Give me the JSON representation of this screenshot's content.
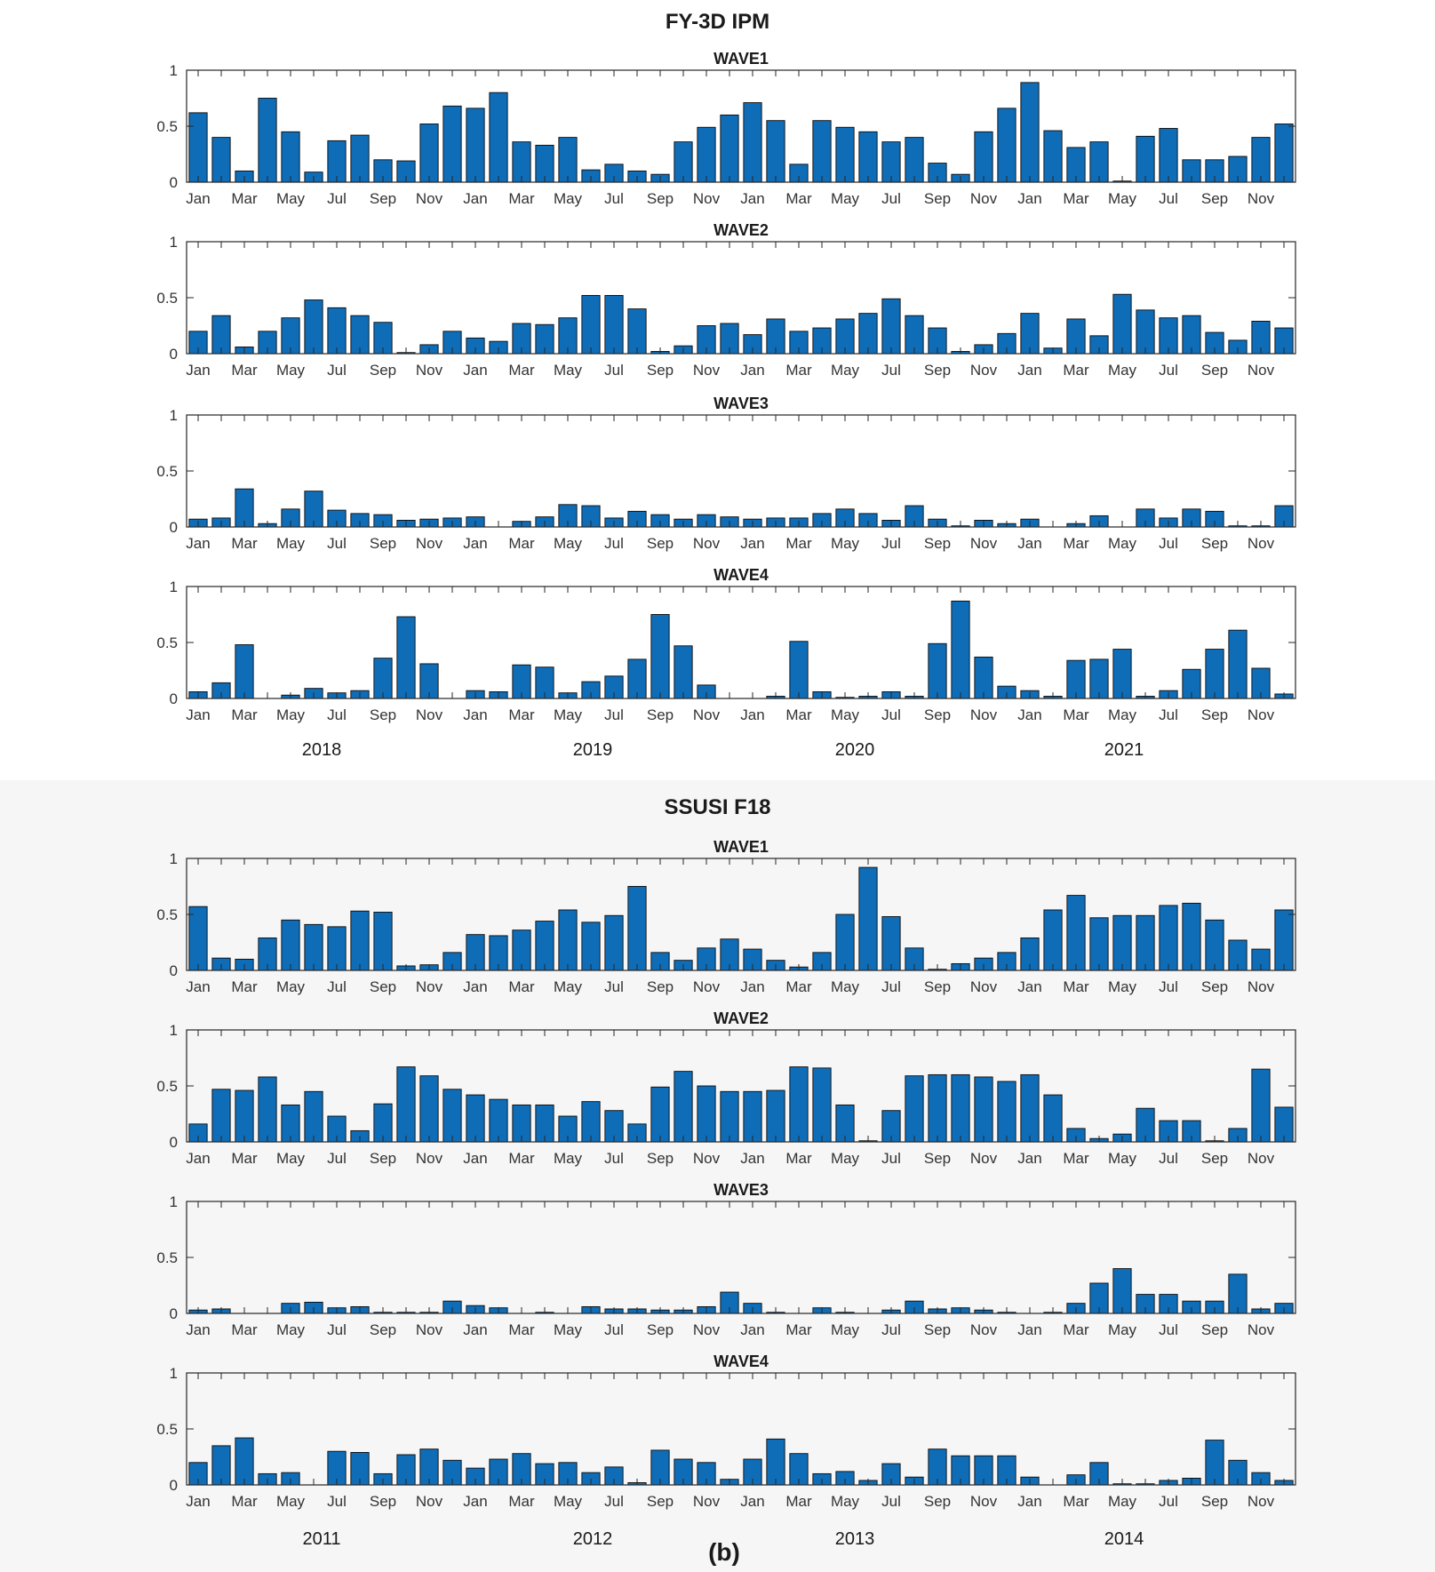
{
  "colors": {
    "bar_fill": "#0f6db8",
    "bar_stroke": "#0a0a0a",
    "axis": "#262626",
    "background_b": "#f6f6f6"
  },
  "caption": "(b)",
  "month_ticks": [
    "Jan",
    "Mar",
    "May",
    "Jul",
    "Sep",
    "Nov",
    "Jan",
    "Mar",
    "May",
    "Jul",
    "Sep",
    "Nov",
    "Jan",
    "Mar",
    "May",
    "Jul",
    "Sep",
    "Nov",
    "Jan",
    "Mar",
    "May",
    "Jul",
    "Sep",
    "Nov"
  ],
  "chart_data": [
    {
      "type": "bar",
      "title": "FY-3D IPM",
      "ytick_labels": [
        "0",
        "0.5",
        "1"
      ],
      "ylim": [
        0,
        1
      ],
      "years": [
        "2018",
        "2019",
        "2020",
        "2021"
      ],
      "series": [
        {
          "name": "WAVE1",
          "values": [
            0.62,
            0.4,
            0.1,
            0.75,
            0.45,
            0.09,
            0.37,
            0.42,
            0.2,
            0.19,
            0.52,
            0.68,
            0.66,
            0.8,
            0.36,
            0.33,
            0.4,
            0.11,
            0.16,
            0.1,
            0.07,
            0.36,
            0.49,
            0.6,
            0.71,
            0.55,
            0.16,
            0.55,
            0.49,
            0.45,
            0.36,
            0.4,
            0.17,
            0.07,
            0.45,
            0.66,
            0.89,
            0.46,
            0.31,
            0.36,
            0.01,
            0.41,
            0.48,
            0.2,
            0.2,
            0.23,
            0.4,
            0.52
          ]
        },
        {
          "name": "WAVE2",
          "values": [
            0.2,
            0.34,
            0.06,
            0.2,
            0.32,
            0.48,
            0.41,
            0.34,
            0.28,
            0.01,
            0.08,
            0.2,
            0.14,
            0.11,
            0.27,
            0.26,
            0.32,
            0.52,
            0.52,
            0.4,
            0.02,
            0.07,
            0.25,
            0.27,
            0.17,
            0.31,
            0.2,
            0.23,
            0.31,
            0.36,
            0.49,
            0.34,
            0.23,
            0.02,
            0.08,
            0.18,
            0.36,
            0.05,
            0.31,
            0.16,
            0.53,
            0.39,
            0.32,
            0.34,
            0.19,
            0.12,
            0.29,
            0.23
          ]
        },
        {
          "name": "WAVE3",
          "values": [
            0.07,
            0.08,
            0.34,
            0.03,
            0.16,
            0.32,
            0.15,
            0.12,
            0.11,
            0.06,
            0.07,
            0.08,
            0.09,
            0.0,
            0.05,
            0.09,
            0.2,
            0.19,
            0.08,
            0.14,
            0.11,
            0.07,
            0.11,
            0.09,
            0.07,
            0.08,
            0.08,
            0.12,
            0.16,
            0.12,
            0.06,
            0.19,
            0.07,
            0.01,
            0.06,
            0.03,
            0.07,
            0.0,
            0.03,
            0.1,
            0.0,
            0.16,
            0.08,
            0.16,
            0.14,
            0.01,
            0.01,
            0.19
          ]
        },
        {
          "name": "WAVE4",
          "values": [
            0.06,
            0.14,
            0.48,
            0.0,
            0.03,
            0.09,
            0.05,
            0.07,
            0.36,
            0.73,
            0.31,
            0.0,
            0.07,
            0.06,
            0.3,
            0.28,
            0.05,
            0.15,
            0.2,
            0.35,
            0.75,
            0.47,
            0.12,
            0.0,
            0.0,
            0.02,
            0.51,
            0.06,
            0.01,
            0.02,
            0.06,
            0.02,
            0.49,
            0.87,
            0.37,
            0.11,
            0.07,
            0.02,
            0.34,
            0.35,
            0.44,
            0.02,
            0.07,
            0.26,
            0.44,
            0.61,
            0.27,
            0.04
          ]
        }
      ]
    },
    {
      "type": "bar",
      "title": "SSUSI F18",
      "ytick_labels": [
        "0",
        "0.5",
        "1"
      ],
      "ylim": [
        0,
        1
      ],
      "years": [
        "2011",
        "2012",
        "2013",
        "2014"
      ],
      "series": [
        {
          "name": "WAVE1",
          "values": [
            0.57,
            0.11,
            0.1,
            0.29,
            0.45,
            0.41,
            0.39,
            0.53,
            0.52,
            0.04,
            0.05,
            0.16,
            0.32,
            0.31,
            0.36,
            0.44,
            0.54,
            0.43,
            0.49,
            0.75,
            0.16,
            0.09,
            0.2,
            0.28,
            0.19,
            0.09,
            0.03,
            0.16,
            0.5,
            0.92,
            0.48,
            0.2,
            0.01,
            0.06,
            0.11,
            0.16,
            0.29,
            0.54,
            0.67,
            0.47,
            0.49,
            0.49,
            0.58,
            0.6,
            0.45,
            0.27,
            0.19,
            0.54
          ]
        },
        {
          "name": "WAVE2",
          "values": [
            0.16,
            0.47,
            0.46,
            0.58,
            0.33,
            0.45,
            0.23,
            0.1,
            0.34,
            0.67,
            0.59,
            0.47,
            0.42,
            0.38,
            0.33,
            0.33,
            0.23,
            0.36,
            0.28,
            0.16,
            0.49,
            0.63,
            0.5,
            0.45,
            0.45,
            0.46,
            0.67,
            0.66,
            0.33,
            0.01,
            0.28,
            0.59,
            0.6,
            0.6,
            0.58,
            0.54,
            0.6,
            0.42,
            0.12,
            0.03,
            0.07,
            0.3,
            0.19,
            0.19,
            0.01,
            0.12,
            0.65,
            0.31
          ]
        },
        {
          "name": "WAVE3",
          "values": [
            0.03,
            0.04,
            0.0,
            0.0,
            0.09,
            0.1,
            0.05,
            0.06,
            0.01,
            0.01,
            0.01,
            0.11,
            0.07,
            0.05,
            0.0,
            0.01,
            0.0,
            0.06,
            0.04,
            0.04,
            0.03,
            0.03,
            0.06,
            0.19,
            0.09,
            0.01,
            0.0,
            0.05,
            0.01,
            0.0,
            0.03,
            0.11,
            0.04,
            0.05,
            0.03,
            0.01,
            0.0,
            0.01,
            0.09,
            0.27,
            0.4,
            0.17,
            0.17,
            0.11,
            0.11,
            0.35,
            0.04,
            0.09
          ]
        },
        {
          "name": "WAVE4",
          "values": [
            0.2,
            0.35,
            0.42,
            0.1,
            0.11,
            0.0,
            0.3,
            0.29,
            0.1,
            0.27,
            0.32,
            0.22,
            0.15,
            0.23,
            0.28,
            0.19,
            0.2,
            0.11,
            0.16,
            0.02,
            0.31,
            0.23,
            0.2,
            0.05,
            0.23,
            0.41,
            0.28,
            0.1,
            0.12,
            0.04,
            0.19,
            0.07,
            0.32,
            0.26,
            0.26,
            0.26,
            0.07,
            0.0,
            0.09,
            0.2,
            0.01,
            0.01,
            0.04,
            0.06,
            0.4,
            0.22,
            0.11,
            0.04
          ]
        }
      ]
    }
  ]
}
